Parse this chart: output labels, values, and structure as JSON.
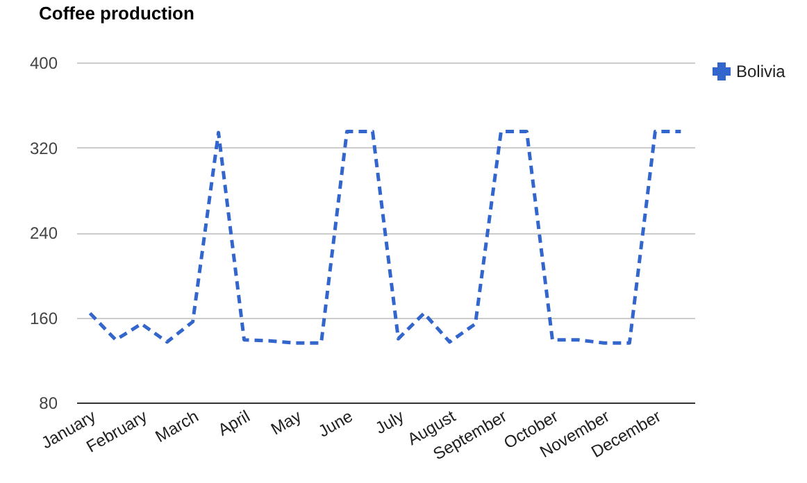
{
  "chart_data": {
    "type": "line",
    "title": "Coffee production",
    "categories": [
      "January",
      null,
      "February",
      null,
      "March",
      null,
      "April",
      null,
      "May",
      null,
      "June",
      null,
      "July",
      null,
      "August",
      null,
      "September",
      null,
      "October",
      null,
      "November",
      null,
      "December",
      null
    ],
    "series": [
      {
        "name": "Bolivia",
        "color": "#3366cc",
        "line_style": "dashed",
        "values": [
          164,
          139,
          154,
          137,
          156,
          334,
          139,
          138,
          136,
          136,
          335,
          335,
          140,
          164,
          137,
          154,
          335,
          335,
          139,
          139,
          136,
          136,
          335,
          335
        ]
      }
    ],
    "ylim": [
      80,
      400
    ],
    "yticks": [
      80,
      160,
      240,
      320,
      400
    ],
    "grid": "y",
    "legend": "right",
    "marker": "none"
  }
}
